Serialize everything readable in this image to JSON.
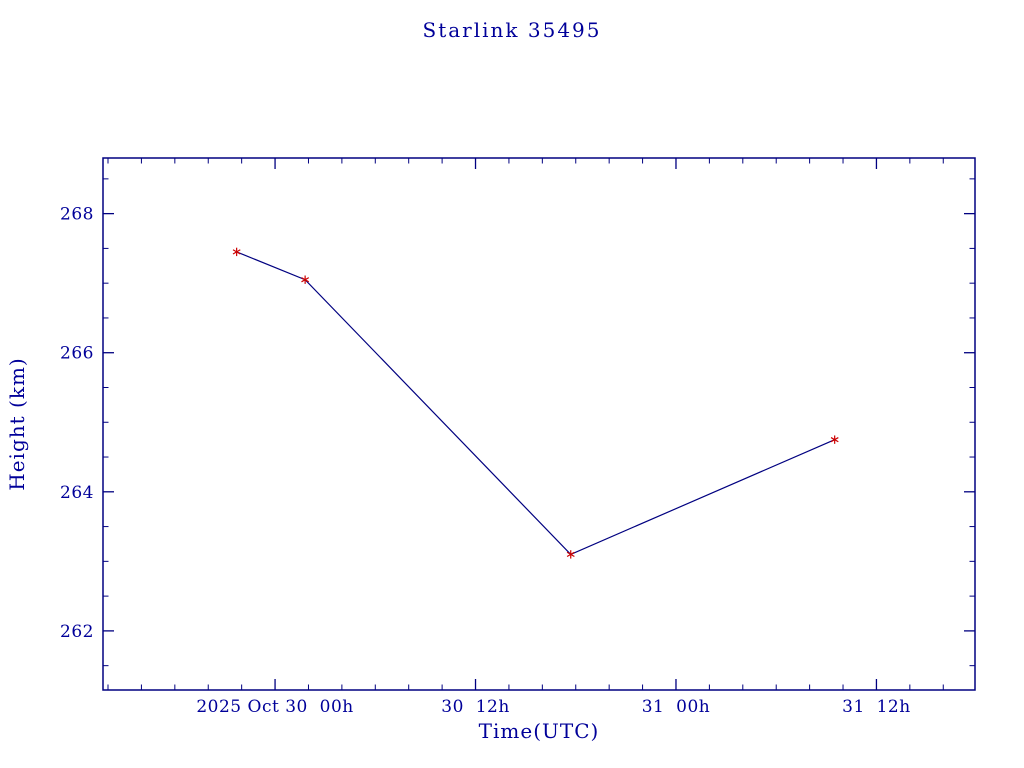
{
  "page": {
    "background": "#ffffff"
  },
  "chart_data": {
    "type": "line",
    "title": "Starlink 35495",
    "xlabel": "Time(UTC)",
    "ylabel": "Height (km)",
    "x_unit": "hours relative to 2025 Oct 30 00:00 UTC (read from axis)",
    "x": [
      -2.3,
      1.8,
      17.7,
      33.5
    ],
    "y": [
      267.45,
      267.05,
      263.1,
      264.75
    ],
    "xlim": [
      -10.3,
      41.9
    ],
    "ylim": [
      261.15,
      268.8
    ],
    "x_ticks": [
      {
        "x": 0,
        "label": "2025 Oct 30  00h"
      },
      {
        "x": 12,
        "label": "30  12h"
      },
      {
        "x": 24,
        "label": "31  00h"
      },
      {
        "x": 36,
        "label": "31  12h"
      }
    ],
    "x_minor_step": 2,
    "y_ticks": [
      {
        "y": 262,
        "label": "262"
      },
      {
        "y": 264,
        "label": "264"
      },
      {
        "y": 266,
        "label": "266"
      },
      {
        "y": 268,
        "label": "268"
      }
    ],
    "y_minor_step": 0.5,
    "grid": false,
    "legend": null,
    "marker": "asterisk",
    "colors": {
      "line": "#000080",
      "marker": "#cc0000",
      "axis": "#000080",
      "text": "#000099",
      "background": "#ffffff"
    }
  }
}
